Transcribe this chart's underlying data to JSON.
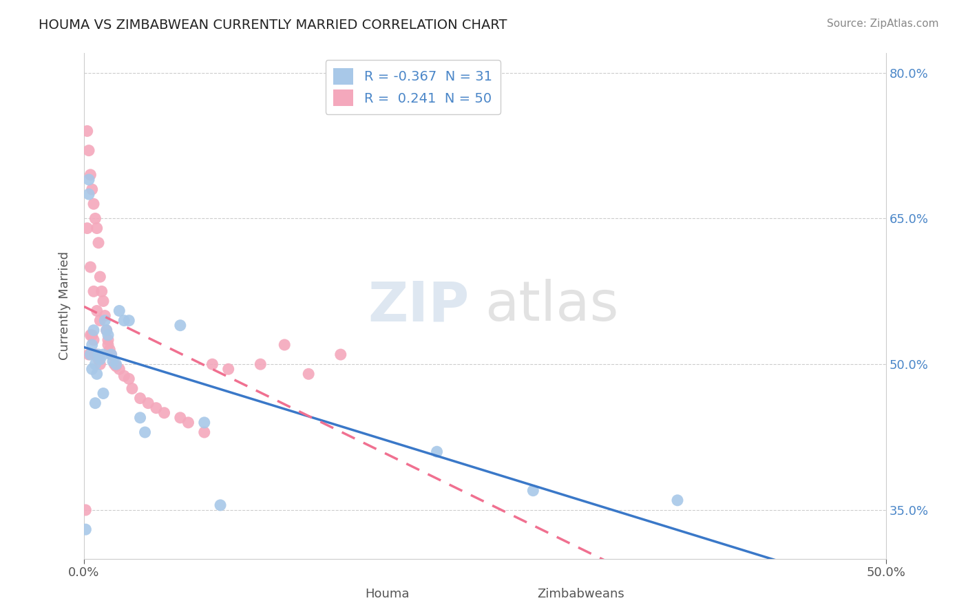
{
  "title": "HOUMA VS ZIMBABWEAN CURRENTLY MARRIED CORRELATION CHART",
  "source": "Source: ZipAtlas.com",
  "xlabel_houma": "Houma",
  "xlabel_zimbabweans": "Zimbabweans",
  "ylabel": "Currently Married",
  "xmin": 0.0,
  "xmax": 0.5,
  "ymin": 0.3,
  "ymax": 0.82,
  "yticks": [
    0.35,
    0.5,
    0.65,
    0.8
  ],
  "ytick_labels": [
    "35.0%",
    "50.0%",
    "65.0%",
    "80.0%"
  ],
  "houma_R": -0.367,
  "houma_N": 31,
  "zimbabwean_R": 0.241,
  "zimbabwean_N": 50,
  "houma_color": "#a8c8e8",
  "zimbabwean_color": "#f4a8bc",
  "houma_line_color": "#3a78c8",
  "zimbabwean_line_color": "#f07090",
  "background_color": "#ffffff",
  "houma_x": [
    0.001,
    0.003,
    0.004,
    0.005,
    0.006,
    0.007,
    0.008,
    0.009,
    0.01,
    0.012,
    0.013,
    0.014,
    0.015,
    0.017,
    0.018,
    0.02,
    0.022,
    0.025,
    0.028,
    0.035,
    0.038,
    0.06,
    0.075,
    0.085,
    0.22,
    0.28,
    0.37,
    0.003,
    0.005,
    0.007,
    0.012
  ],
  "houma_y": [
    0.33,
    0.69,
    0.51,
    0.52,
    0.535,
    0.5,
    0.49,
    0.51,
    0.505,
    0.51,
    0.545,
    0.535,
    0.53,
    0.51,
    0.503,
    0.5,
    0.555,
    0.545,
    0.545,
    0.445,
    0.43,
    0.54,
    0.44,
    0.355,
    0.41,
    0.37,
    0.36,
    0.675,
    0.495,
    0.46,
    0.47
  ],
  "zimbabwean_x": [
    0.001,
    0.002,
    0.003,
    0.003,
    0.004,
    0.004,
    0.005,
    0.005,
    0.006,
    0.006,
    0.007,
    0.007,
    0.008,
    0.008,
    0.009,
    0.009,
    0.01,
    0.01,
    0.011,
    0.012,
    0.013,
    0.014,
    0.015,
    0.016,
    0.017,
    0.019,
    0.02,
    0.022,
    0.025,
    0.028,
    0.03,
    0.035,
    0.04,
    0.045,
    0.05,
    0.06,
    0.065,
    0.075,
    0.08,
    0.09,
    0.11,
    0.125,
    0.14,
    0.16,
    0.002,
    0.004,
    0.006,
    0.008,
    0.01,
    0.015
  ],
  "zimbabwean_y": [
    0.35,
    0.74,
    0.72,
    0.51,
    0.695,
    0.53,
    0.68,
    0.53,
    0.665,
    0.525,
    0.65,
    0.51,
    0.64,
    0.51,
    0.625,
    0.505,
    0.59,
    0.5,
    0.575,
    0.565,
    0.55,
    0.535,
    0.525,
    0.515,
    0.51,
    0.5,
    0.498,
    0.495,
    0.488,
    0.485,
    0.475,
    0.465,
    0.46,
    0.455,
    0.45,
    0.445,
    0.44,
    0.43,
    0.5,
    0.495,
    0.5,
    0.52,
    0.49,
    0.51,
    0.64,
    0.6,
    0.575,
    0.555,
    0.545,
    0.52
  ]
}
